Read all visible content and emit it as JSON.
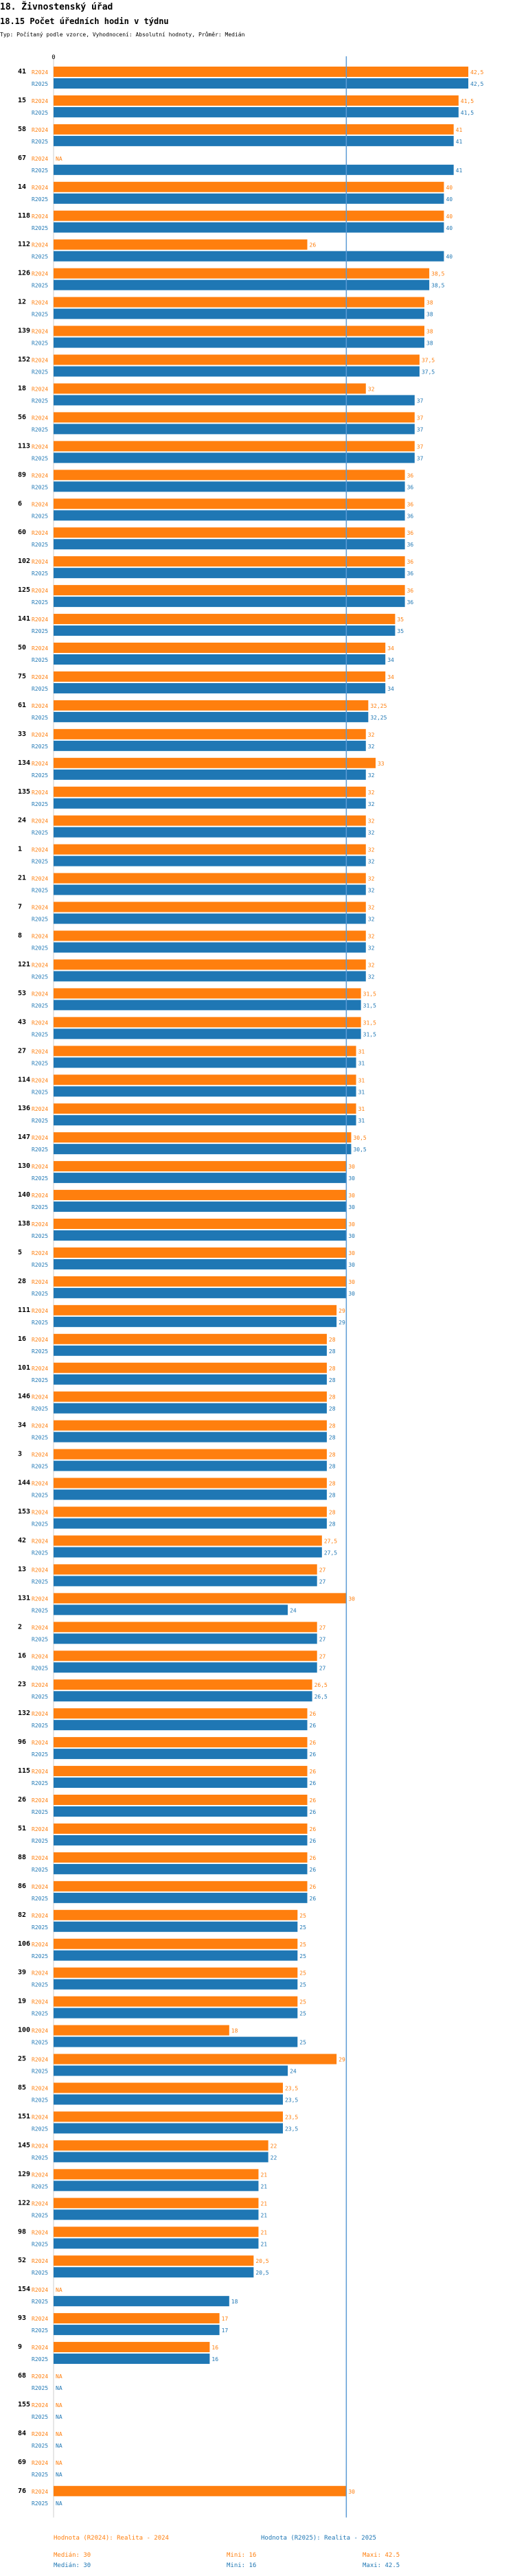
{
  "title": "18. Živnostenský úřad",
  "subtitle": "18.15 Počet úředních hodin v týdnu",
  "meta": "Typ: Počítaný podle vzorce, Vyhodnocení: Absolutní hodnoty, Průměr: Medián",
  "colors": {
    "r2024": "#ff7f0e",
    "r2025": "#1f77b4",
    "axis": "#5b9bd5"
  },
  "chart_data": {
    "type": "bar",
    "orientation": "horizontal",
    "series_labels": [
      "R2024",
      "R2025"
    ],
    "axis_tick": "0",
    "xlim": [
      0,
      42.5
    ],
    "reference_line": 30,
    "groups": [
      {
        "id": "41",
        "values": [
          42.5,
          42.5
        ]
      },
      {
        "id": "15",
        "values": [
          41.5,
          41.5
        ]
      },
      {
        "id": "58",
        "values": [
          41,
          41
        ]
      },
      {
        "id": "67",
        "values": [
          null,
          41
        ]
      },
      {
        "id": "14",
        "values": [
          40,
          40
        ]
      },
      {
        "id": "118",
        "values": [
          40,
          40
        ]
      },
      {
        "id": "112",
        "values": [
          26,
          40
        ]
      },
      {
        "id": "126",
        "values": [
          38.5,
          38.5
        ]
      },
      {
        "id": "12",
        "values": [
          38,
          38
        ]
      },
      {
        "id": "139",
        "values": [
          38,
          38
        ]
      },
      {
        "id": "152",
        "values": [
          37.5,
          37.5
        ]
      },
      {
        "id": "18",
        "values": [
          32,
          37
        ]
      },
      {
        "id": "56",
        "values": [
          37,
          37
        ]
      },
      {
        "id": "113",
        "values": [
          37,
          37
        ]
      },
      {
        "id": "89",
        "values": [
          36,
          36
        ]
      },
      {
        "id": "6",
        "values": [
          36,
          36
        ]
      },
      {
        "id": "60",
        "values": [
          36,
          36
        ]
      },
      {
        "id": "102",
        "values": [
          36,
          36
        ]
      },
      {
        "id": "125",
        "values": [
          36,
          36
        ]
      },
      {
        "id": "141",
        "values": [
          35,
          35
        ]
      },
      {
        "id": "50",
        "values": [
          34,
          34
        ]
      },
      {
        "id": "75",
        "values": [
          34,
          34
        ]
      },
      {
        "id": "61",
        "values": [
          32.25,
          32.25
        ]
      },
      {
        "id": "33",
        "values": [
          32,
          32
        ]
      },
      {
        "id": "134",
        "values": [
          33,
          32
        ]
      },
      {
        "id": "135",
        "values": [
          32,
          32
        ]
      },
      {
        "id": "24",
        "values": [
          32,
          32
        ]
      },
      {
        "id": "1",
        "values": [
          32,
          32
        ]
      },
      {
        "id": "21",
        "values": [
          32,
          32
        ]
      },
      {
        "id": "7",
        "values": [
          32,
          32
        ]
      },
      {
        "id": "8",
        "values": [
          32,
          32
        ]
      },
      {
        "id": "121",
        "values": [
          32,
          32
        ]
      },
      {
        "id": "53",
        "values": [
          31.5,
          31.5
        ]
      },
      {
        "id": "43",
        "values": [
          31.5,
          31.5
        ]
      },
      {
        "id": "27",
        "values": [
          31,
          31
        ]
      },
      {
        "id": "114",
        "values": [
          31,
          31
        ]
      },
      {
        "id": "136",
        "values": [
          31,
          31
        ]
      },
      {
        "id": "147",
        "values": [
          30.5,
          30.5
        ]
      },
      {
        "id": "130",
        "values": [
          30,
          30
        ]
      },
      {
        "id": "140",
        "values": [
          30,
          30
        ]
      },
      {
        "id": "138",
        "values": [
          30,
          30
        ]
      },
      {
        "id": "5",
        "values": [
          30,
          30
        ]
      },
      {
        "id": "28",
        "values": [
          30,
          30
        ]
      },
      {
        "id": "111",
        "values": [
          29,
          29
        ]
      },
      {
        "id": "16",
        "values": [
          28,
          28
        ]
      },
      {
        "id": "101",
        "values": [
          28,
          28
        ]
      },
      {
        "id": "146",
        "values": [
          28,
          28
        ]
      },
      {
        "id": "34",
        "values": [
          28,
          28
        ]
      },
      {
        "id": "3",
        "values": [
          28,
          28
        ]
      },
      {
        "id": "144",
        "values": [
          28,
          28
        ]
      },
      {
        "id": "153",
        "values": [
          28,
          28
        ]
      },
      {
        "id": "42",
        "values": [
          27.5,
          27.5
        ]
      },
      {
        "id": "13",
        "values": [
          27,
          27
        ]
      },
      {
        "id": "131",
        "values": [
          30,
          24
        ]
      },
      {
        "id": "2",
        "values": [
          27,
          27
        ]
      },
      {
        "id": "16",
        "values": [
          27,
          27
        ]
      },
      {
        "id": "23",
        "values": [
          26.5,
          26.5
        ]
      },
      {
        "id": "132",
        "values": [
          26,
          26
        ]
      },
      {
        "id": "96",
        "values": [
          26,
          26
        ]
      },
      {
        "id": "115",
        "values": [
          26,
          26
        ]
      },
      {
        "id": "26",
        "values": [
          26,
          26
        ]
      },
      {
        "id": "51",
        "values": [
          26,
          26
        ]
      },
      {
        "id": "88",
        "values": [
          26,
          26
        ]
      },
      {
        "id": "86",
        "values": [
          26,
          26
        ]
      },
      {
        "id": "82",
        "values": [
          25,
          25
        ]
      },
      {
        "id": "106",
        "values": [
          25,
          25
        ]
      },
      {
        "id": "39",
        "values": [
          25,
          25
        ]
      },
      {
        "id": "19",
        "values": [
          25,
          25
        ]
      },
      {
        "id": "100",
        "values": [
          18,
          25
        ]
      },
      {
        "id": "25",
        "values": [
          29,
          24
        ]
      },
      {
        "id": "85",
        "values": [
          23.5,
          23.5
        ]
      },
      {
        "id": "151",
        "values": [
          23.5,
          23.5
        ]
      },
      {
        "id": "145",
        "values": [
          22,
          22
        ]
      },
      {
        "id": "129",
        "values": [
          21,
          21
        ]
      },
      {
        "id": "122",
        "values": [
          21,
          21
        ]
      },
      {
        "id": "98",
        "values": [
          21,
          21
        ]
      },
      {
        "id": "52",
        "values": [
          20.5,
          20.5
        ]
      },
      {
        "id": "154",
        "values": [
          null,
          18
        ]
      },
      {
        "id": "93",
        "values": [
          17,
          17
        ]
      },
      {
        "id": "9",
        "values": [
          16,
          16
        ]
      },
      {
        "id": "68",
        "values": [
          null,
          null
        ]
      },
      {
        "id": "155",
        "values": [
          null,
          null
        ]
      },
      {
        "id": "84",
        "values": [
          null,
          null
        ]
      },
      {
        "id": "69",
        "values": [
          null,
          null
        ]
      },
      {
        "id": "76",
        "values": [
          30,
          null
        ]
      }
    ]
  },
  "footer": {
    "legend_2024": "Hodnota (R2024): Realita - 2024",
    "legend_2025": "Hodnota (R2025): Realita - 2025",
    "median_2024": "Medián: 30",
    "min_2024": "Mini: 16",
    "max_2024": "Maxi: 42.5",
    "median_2025": "Medián: 30",
    "min_2025": "Mini: 16",
    "max_2025": "Maxi: 42.5"
  }
}
